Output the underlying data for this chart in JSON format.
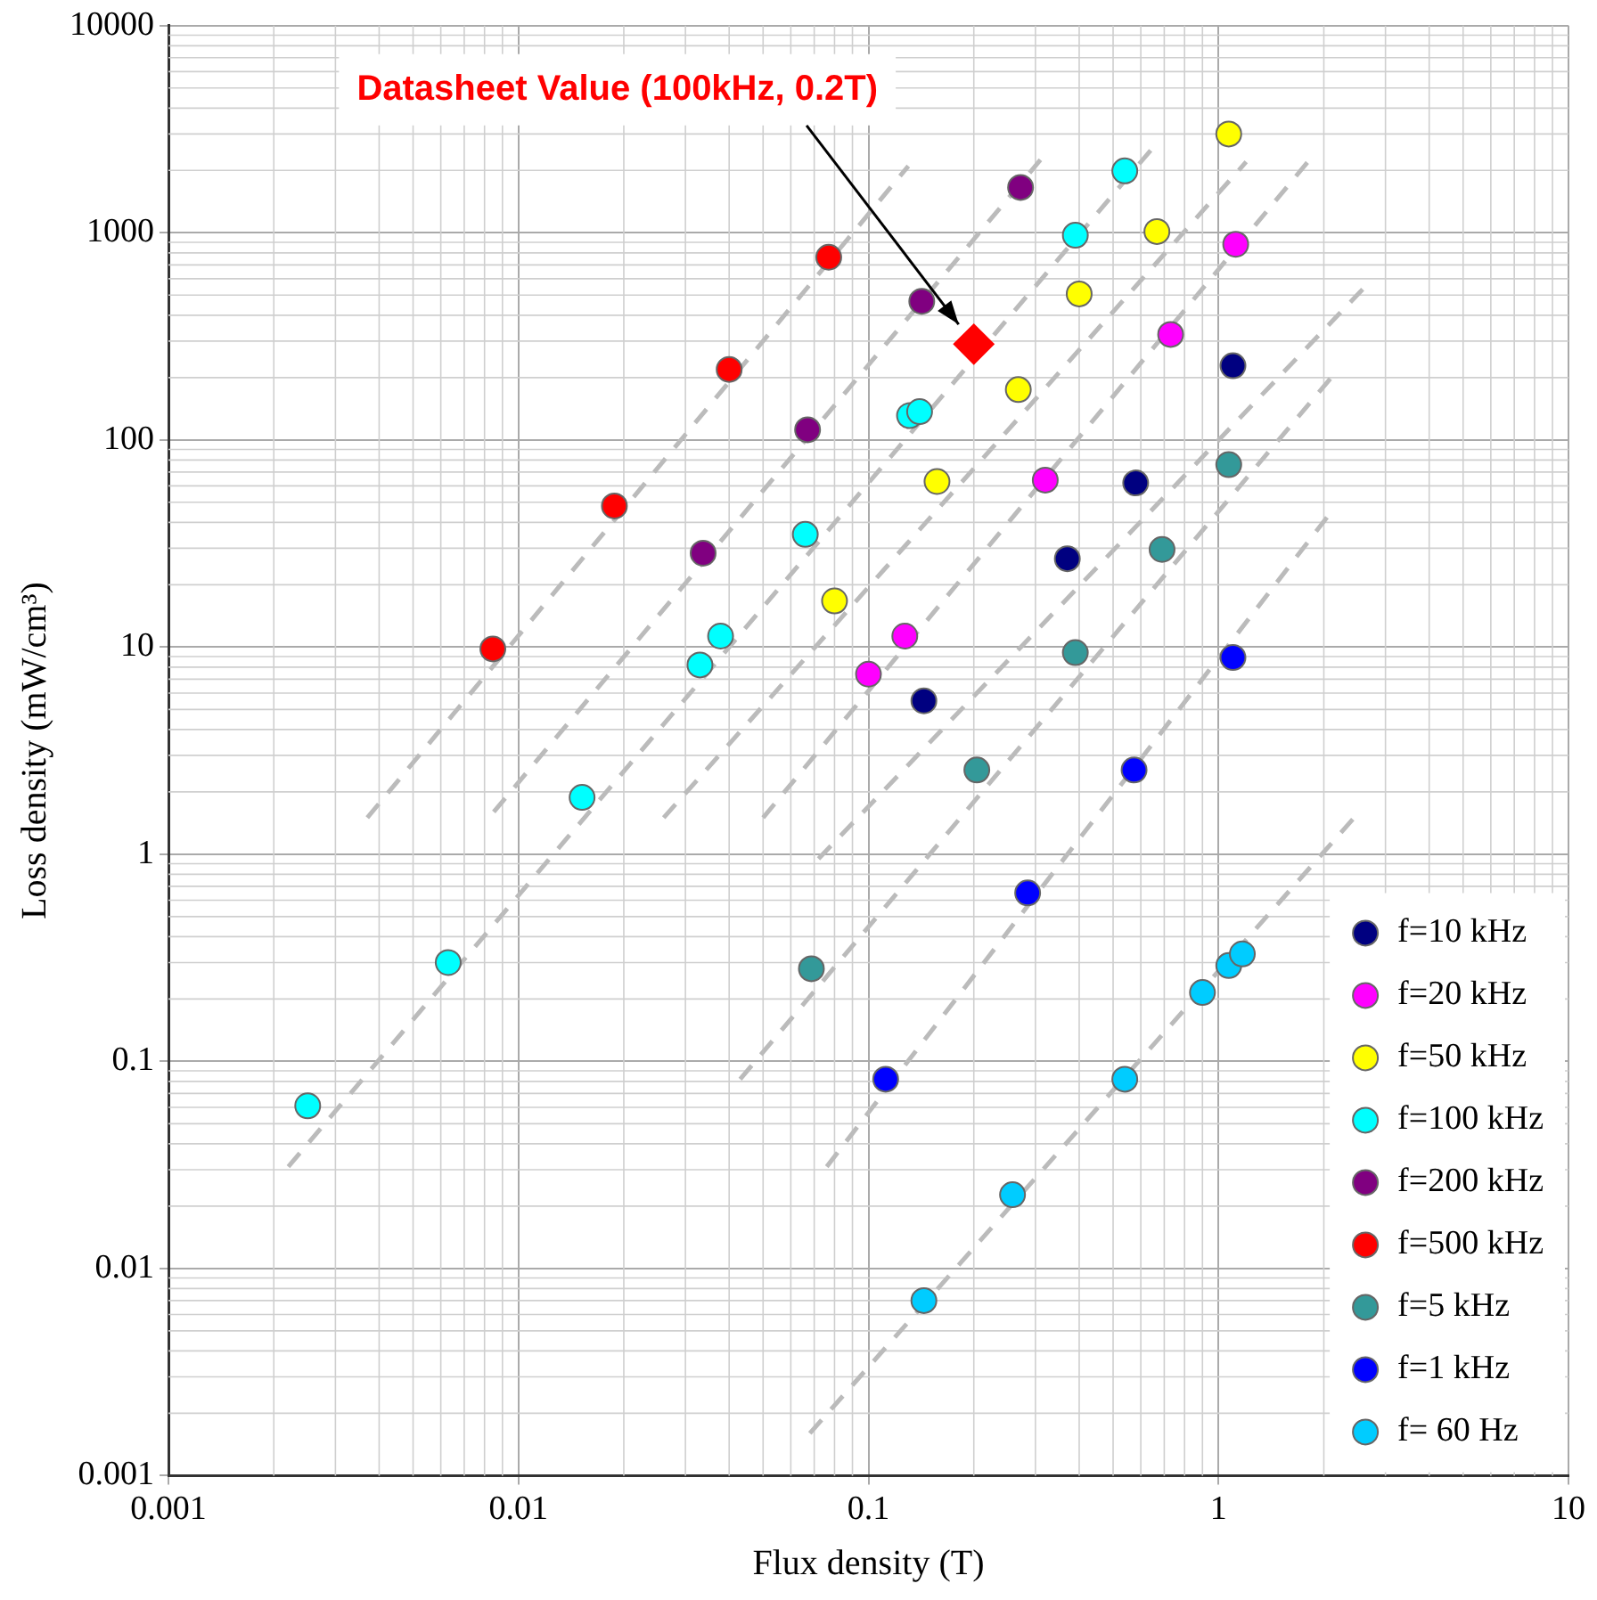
{
  "chart_data": {
    "type": "scatter",
    "xlabel": "Flux density (T)",
    "ylabel": "Loss density (mW/cm³)",
    "xlim": [
      0.001,
      10
    ],
    "ylim": [
      0.001,
      10000
    ],
    "xticks": [
      0.001,
      0.01,
      0.1,
      1,
      10
    ],
    "yticks": [
      0.001,
      0.01,
      0.1,
      1,
      10,
      100,
      1000,
      10000
    ],
    "log": "xy",
    "grid": true,
    "legend": "bottom right",
    "marker": "circle",
    "annotations": [
      "Datasheet Value (100kHz, 0.2T)"
    ],
    "series": [
      {
        "name": "f=10 kHz",
        "color": "#000080",
        "x": [
          0.144,
          0.37,
          0.58,
          1.1
        ],
        "values": [
          5.5,
          26.7,
          62,
          228
        ]
      },
      {
        "name": "f=20 kHz",
        "color": "#ff00ff",
        "x": [
          0.1,
          0.127,
          0.32,
          0.73,
          1.12
        ],
        "values": [
          7.4,
          11.3,
          64,
          323,
          880
        ]
      },
      {
        "name": "f=50 kHz",
        "color": "#ffff00",
        "x": [
          0.08,
          0.157,
          0.268,
          0.4,
          0.667,
          1.07
        ],
        "values": [
          16.7,
          63,
          175,
          507,
          1014,
          3000
        ]
      },
      {
        "name": "f=100 kHz",
        "color": "#00ffff",
        "x": [
          0.0025,
          0.0063,
          0.0152,
          0.033,
          0.0378,
          0.066,
          0.131,
          0.14,
          0.39,
          0.54
        ],
        "values": [
          0.061,
          0.3,
          1.88,
          8.2,
          11.3,
          35,
          131,
          137,
          973,
          1990
        ]
      },
      {
        "name": "f=200 kHz",
        "color": "#800080",
        "x": [
          0.0337,
          0.067,
          0.142,
          0.272
        ],
        "values": [
          28.4,
          112,
          467,
          1656
        ]
      },
      {
        "name": "f=500 kHz",
        "color": "#ff0000",
        "x": [
          0.00845,
          0.0188,
          0.04,
          0.077
        ],
        "values": [
          9.8,
          48,
          219,
          762
        ]
      },
      {
        "name": "f=5 kHz",
        "color": "#339999",
        "x": [
          0.0687,
          0.204,
          0.39,
          0.69,
          1.07
        ],
        "values": [
          0.28,
          2.55,
          9.4,
          29.6,
          76
        ]
      },
      {
        "name": "f=1 kHz",
        "color": "#0000ff",
        "x": [
          0.112,
          0.285,
          0.574,
          1.1
        ],
        "values": [
          0.082,
          0.65,
          2.55,
          8.9
        ]
      },
      {
        "name": "f= 60 Hz",
        "color": "#00ccff",
        "x": [
          0.144,
          0.258,
          0.54,
          0.9,
          1.07,
          1.17
        ],
        "values": [
          0.007,
          0.0227,
          0.082,
          0.215,
          0.29,
          0.33
        ]
      },
      {
        "type": "line",
        "color": "#bbbbbb",
        "line_style": "dashed",
        "marker": "none",
        "x": [
          0.0037,
          0.13
        ],
        "values": [
          1.5,
          2100
        ]
      },
      {
        "type": "line",
        "color": "#bbbbbb",
        "line_style": "dashed",
        "marker": "none",
        "x": [
          0.0085,
          0.31
        ],
        "values": [
          1.6,
          2250
        ]
      },
      {
        "type": "line",
        "color": "#bbbbbb",
        "line_style": "dashed",
        "marker": "none",
        "x": [
          0.0022,
          0.64
        ],
        "values": [
          0.031,
          2500
        ]
      },
      {
        "type": "line",
        "color": "#bbbbbb",
        "line_style": "dashed",
        "marker": "none",
        "x": [
          0.026,
          1.2
        ],
        "values": [
          1.5,
          2200
        ]
      },
      {
        "type": "line",
        "color": "#bbbbbb",
        "line_style": "dashed",
        "marker": "none",
        "x": [
          0.05,
          1.8
        ],
        "values": [
          1.5,
          2200
        ]
      },
      {
        "type": "line",
        "color": "#bbbbbb",
        "line_style": "dashed",
        "marker": "none",
        "x": [
          0.072,
          2.6
        ],
        "values": [
          0.95,
          540
        ]
      },
      {
        "type": "line",
        "color": "#bbbbbb",
        "line_style": "dashed",
        "marker": "none",
        "x": [
          0.043,
          2.1
        ],
        "values": [
          0.082,
          200
        ]
      },
      {
        "type": "line",
        "color": "#bbbbbb",
        "line_style": "dashed",
        "marker": "none",
        "x": [
          0.076,
          2.1
        ],
        "values": [
          0.031,
          45
        ]
      },
      {
        "type": "line",
        "color": "#bbbbbb",
        "line_style": "dashed",
        "marker": "none",
        "x": [
          0.068,
          2.44
        ],
        "values": [
          0.0016,
          1.5
        ]
      },
      {
        "type": "scatter",
        "color": "#ff0000",
        "marker": "diamond",
        "x": [
          0.2
        ],
        "values": [
          290
        ]
      }
    ]
  }
}
